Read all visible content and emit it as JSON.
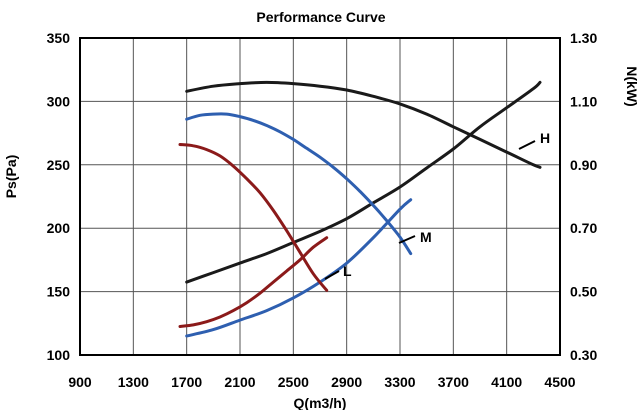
{
  "chart_data": {
    "type": "line",
    "title": "Performance Curve",
    "xlabel": "Q(m3/h)",
    "ylabel": "Ps(Pa)",
    "y2label": "N(kW)",
    "xlim": [
      900,
      4500
    ],
    "ylim": [
      100,
      350
    ],
    "y2lim": [
      0.3,
      1.3
    ],
    "xticks": [
      "900",
      "1300",
      "1700",
      "2100",
      "2500",
      "2900",
      "3300",
      "3700",
      "4100",
      "4500"
    ],
    "yticks": [
      "100",
      "150",
      "200",
      "250",
      "300",
      "350"
    ],
    "y2ticks": [
      "0.30",
      "0.50",
      "0.70",
      "0.90",
      "1.10",
      "1.30"
    ],
    "grid": true,
    "series": [
      {
        "name": "H",
        "color": "#1a1a1a",
        "pressure": {
          "x": [
            1700,
            1900,
            2100,
            2300,
            2500,
            2700,
            2900,
            3100,
            3300,
            3500,
            3700,
            3900,
            4100,
            4300,
            4350
          ],
          "y": [
            308,
            312,
            314,
            315,
            314,
            312,
            309,
            304,
            298,
            290,
            280,
            270,
            260,
            250,
            248
          ]
        },
        "power": {
          "x": [
            1700,
            1900,
            2100,
            2300,
            2500,
            2700,
            2900,
            3100,
            3300,
            3500,
            3700,
            3900,
            4100,
            4300,
            4350
          ],
          "y": [
            0.53,
            0.56,
            0.59,
            0.62,
            0.655,
            0.69,
            0.73,
            0.78,
            0.83,
            0.89,
            0.95,
            1.02,
            1.08,
            1.14,
            1.16
          ]
        }
      },
      {
        "name": "M",
        "color": "#2e5fb0",
        "pressure": {
          "x": [
            1700,
            1800,
            1900,
            2000,
            2100,
            2200,
            2300,
            2400,
            2500,
            2600,
            2700,
            2800,
            2900,
            3000,
            3100,
            3200,
            3300,
            3380
          ],
          "y": [
            286,
            289,
            290,
            290,
            288,
            285,
            281,
            276,
            270,
            263,
            256,
            248,
            239,
            229,
            218,
            206,
            193,
            180
          ]
        },
        "power": {
          "x": [
            1700,
            1900,
            2100,
            2300,
            2500,
            2700,
            2900,
            3100,
            3300,
            3380
          ],
          "y": [
            0.36,
            0.38,
            0.41,
            0.44,
            0.48,
            0.53,
            0.59,
            0.67,
            0.76,
            0.79
          ]
        }
      },
      {
        "name": "L",
        "color": "#8b1a1a",
        "pressure": {
          "x": [
            1650,
            1750,
            1850,
            1950,
            2050,
            2150,
            2250,
            2350,
            2450,
            2550,
            2650,
            2750
          ],
          "y": [
            266,
            265,
            262,
            257,
            249,
            239,
            228,
            214,
            198,
            181,
            164,
            151
          ]
        },
        "power": {
          "x": [
            1650,
            1750,
            1850,
            1950,
            2050,
            2150,
            2250,
            2350,
            2450,
            2550,
            2650,
            2750
          ],
          "y": [
            0.39,
            0.395,
            0.405,
            0.42,
            0.44,
            0.465,
            0.495,
            0.53,
            0.565,
            0.6,
            0.64,
            0.67
          ]
        }
      }
    ],
    "labels": [
      {
        "text": "H",
        "series": "H"
      },
      {
        "text": "M",
        "series": "M"
      },
      {
        "text": "L",
        "series": "L"
      }
    ]
  }
}
